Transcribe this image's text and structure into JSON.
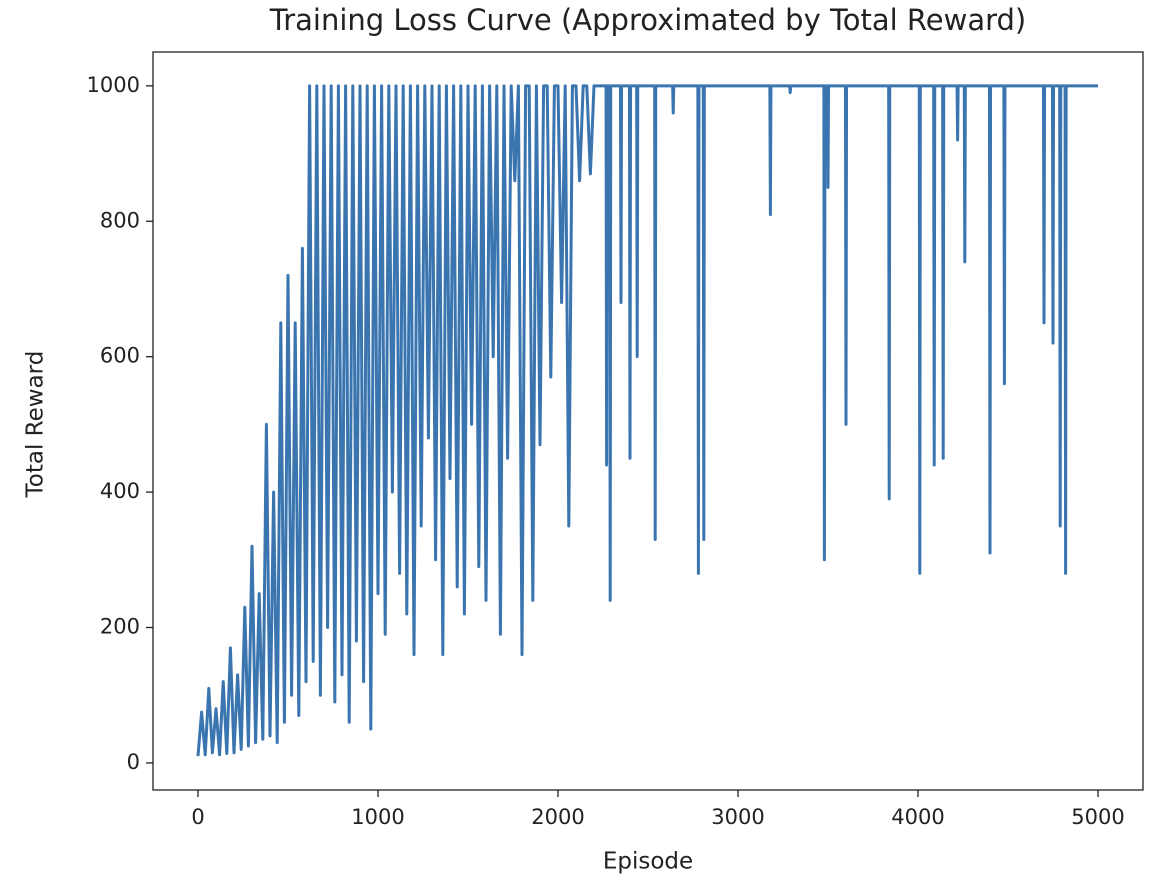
{
  "chart_data": {
    "type": "line",
    "title": "Training Loss Curve (Approximated by Total Reward)",
    "x_label": "Episode",
    "y_label": "Total Reward",
    "xlim": [
      -250,
      5250
    ],
    "ylim": [
      -40,
      1050
    ],
    "xticks": [
      0,
      1000,
      2000,
      3000,
      4000,
      5000
    ],
    "yticks": [
      0,
      200,
      400,
      600,
      800,
      1000
    ],
    "grid": false,
    "series": [
      {
        "name": "Total Reward",
        "color": "#3a75b0",
        "x": [
          0,
          20,
          40,
          60,
          80,
          100,
          120,
          140,
          160,
          180,
          200,
          220,
          240,
          260,
          280,
          300,
          320,
          340,
          360,
          380,
          400,
          420,
          440,
          460,
          480,
          500,
          520,
          540,
          560,
          580,
          600,
          620,
          640,
          660,
          680,
          700,
          720,
          740,
          760,
          780,
          800,
          820,
          840,
          860,
          880,
          900,
          920,
          940,
          960,
          980,
          1000,
          1020,
          1040,
          1060,
          1080,
          1100,
          1120,
          1140,
          1160,
          1180,
          1200,
          1220,
          1240,
          1260,
          1280,
          1300,
          1320,
          1340,
          1360,
          1380,
          1400,
          1420,
          1440,
          1460,
          1480,
          1500,
          1520,
          1540,
          1560,
          1580,
          1600,
          1620,
          1640,
          1660,
          1680,
          1700,
          1720,
          1740,
          1760,
          1780,
          1800,
          1820,
          1840,
          1860,
          1880,
          1900,
          1920,
          1940,
          1960,
          1980,
          2000,
          2020,
          2040,
          2060,
          2080,
          2100,
          2120,
          2140,
          2160,
          2180,
          2200,
          2267,
          2270,
          2273,
          2287,
          2290,
          2293,
          2347,
          2350,
          2353,
          2397,
          2400,
          2403,
          2437,
          2440,
          2443,
          2537,
          2540,
          2543,
          2637,
          2640,
          2643,
          2777,
          2780,
          2783,
          2807,
          2810,
          2813,
          3177,
          3180,
          3183,
          3287,
          3290,
          3293,
          3477,
          3480,
          3483,
          3497,
          3500,
          3503,
          3597,
          3600,
          3603,
          3837,
          3840,
          3843,
          4007,
          4010,
          4013,
          4087,
          4090,
          4093,
          4137,
          4140,
          4143,
          4217,
          4220,
          4223,
          4257,
          4260,
          4263,
          4397,
          4400,
          4403,
          4477,
          4480,
          4483,
          4697,
          4700,
          4703,
          4747,
          4750,
          4753,
          4787,
          4790,
          4793,
          4817,
          4820,
          4823,
          5000
        ],
        "values": [
          10,
          75,
          12,
          110,
          15,
          80,
          12,
          120,
          14,
          170,
          15,
          130,
          20,
          230,
          25,
          320,
          30,
          250,
          35,
          500,
          40,
          400,
          30,
          650,
          60,
          720,
          100,
          650,
          70,
          760,
          120,
          1000,
          150,
          1000,
          100,
          1000,
          200,
          1000,
          90,
          1000,
          130,
          1000,
          60,
          1000,
          180,
          1000,
          120,
          1000,
          50,
          1000,
          250,
          1000,
          190,
          1000,
          400,
          1000,
          280,
          1000,
          220,
          1000,
          160,
          1000,
          350,
          1000,
          480,
          1000,
          300,
          1000,
          160,
          1000,
          420,
          1000,
          260,
          1000,
          220,
          1000,
          500,
          1000,
          290,
          1000,
          240,
          1000,
          600,
          1000,
          190,
          1000,
          450,
          1000,
          860,
          1000,
          160,
          1000,
          1000,
          240,
          1000,
          470,
          1000,
          1000,
          570,
          1000,
          1000,
          680,
          1000,
          350,
          1000,
          1000,
          860,
          1000,
          1000,
          870,
          1000,
          1000,
          440,
          1000,
          1000,
          240,
          1000,
          1000,
          680,
          1000,
          1000,
          450,
          1000,
          1000,
          600,
          1000,
          1000,
          330,
          1000,
          1000,
          960,
          1000,
          1000,
          280,
          1000,
          1000,
          330,
          1000,
          1000,
          810,
          1000,
          1000,
          990,
          1000,
          1000,
          300,
          1000,
          1000,
          850,
          1000,
          1000,
          500,
          1000,
          1000,
          390,
          1000,
          1000,
          280,
          1000,
          1000,
          440,
          1000,
          1000,
          450,
          1000,
          1000,
          920,
          1000,
          1000,
          740,
          1000,
          1000,
          310,
          1000,
          1000,
          560,
          1000,
          1000,
          650,
          1000,
          1000,
          620,
          1000,
          1000,
          350,
          1000,
          1000,
          280,
          1000,
          1000
        ]
      }
    ]
  }
}
